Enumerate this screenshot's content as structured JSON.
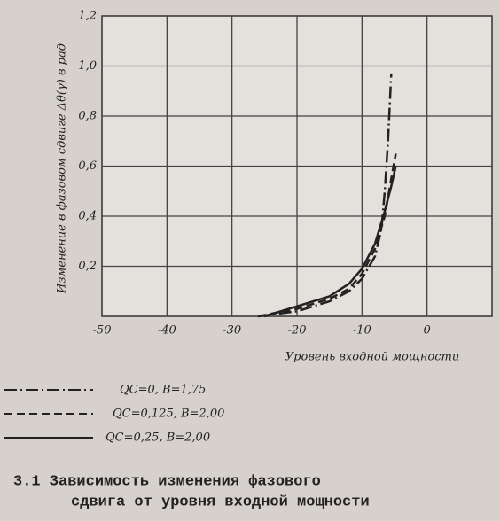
{
  "chart_data": {
    "type": "line",
    "caption": [
      "3.1 Зависимость изменения фазового",
      "сдвига от уровня входной мощности"
    ],
    "x_label": "Уровень входной мощности",
    "y_label": "Изменение в фазовом сдвиге Δθ(γ) в рад",
    "xlim": [
      -50,
      10
    ],
    "xticks": [
      -50,
      -40,
      -30,
      -20,
      -10,
      0
    ],
    "ylim": [
      0,
      1.2
    ],
    "yticks": [
      {
        "value": 0.2,
        "label": "0,2"
      },
      {
        "value": 0.4,
        "label": "0,4"
      },
      {
        "value": 0.6,
        "label": "0,6"
      },
      {
        "value": 0.8,
        "label": "0,8"
      },
      {
        "value": 1.0,
        "label": "1,0"
      },
      {
        "value": 1.2,
        "label": "1,2"
      }
    ],
    "grid": true,
    "series": [
      {
        "name": "QC=0, B=1,75",
        "color": "#222222",
        "dash": "dashdot",
        "x": [
          -26,
          -20,
          -15,
          -12,
          -10,
          -8,
          -7,
          -6.5,
          -6,
          -5.5
        ],
        "values": [
          0,
          0.02,
          0.06,
          0.1,
          0.15,
          0.24,
          0.35,
          0.5,
          0.7,
          0.97
        ]
      },
      {
        "name": "QC=0,125, B=2,00",
        "color": "#222222",
        "dash": "dashed",
        "x": [
          -26,
          -20,
          -15,
          -12,
          -10,
          -8,
          -6.5,
          -5.5,
          -4.8
        ],
        "values": [
          0,
          0.03,
          0.07,
          0.11,
          0.17,
          0.27,
          0.4,
          0.55,
          0.65
        ]
      },
      {
        "name": "QC=0,25, B=2,00",
        "color": "#222222",
        "dash": "solid",
        "x": [
          -25,
          -20,
          -15,
          -12,
          -10,
          -8,
          -6.5,
          -5.5,
          -4.8
        ],
        "values": [
          0,
          0.04,
          0.08,
          0.13,
          0.19,
          0.29,
          0.42,
          0.52,
          0.6
        ]
      }
    ]
  }
}
